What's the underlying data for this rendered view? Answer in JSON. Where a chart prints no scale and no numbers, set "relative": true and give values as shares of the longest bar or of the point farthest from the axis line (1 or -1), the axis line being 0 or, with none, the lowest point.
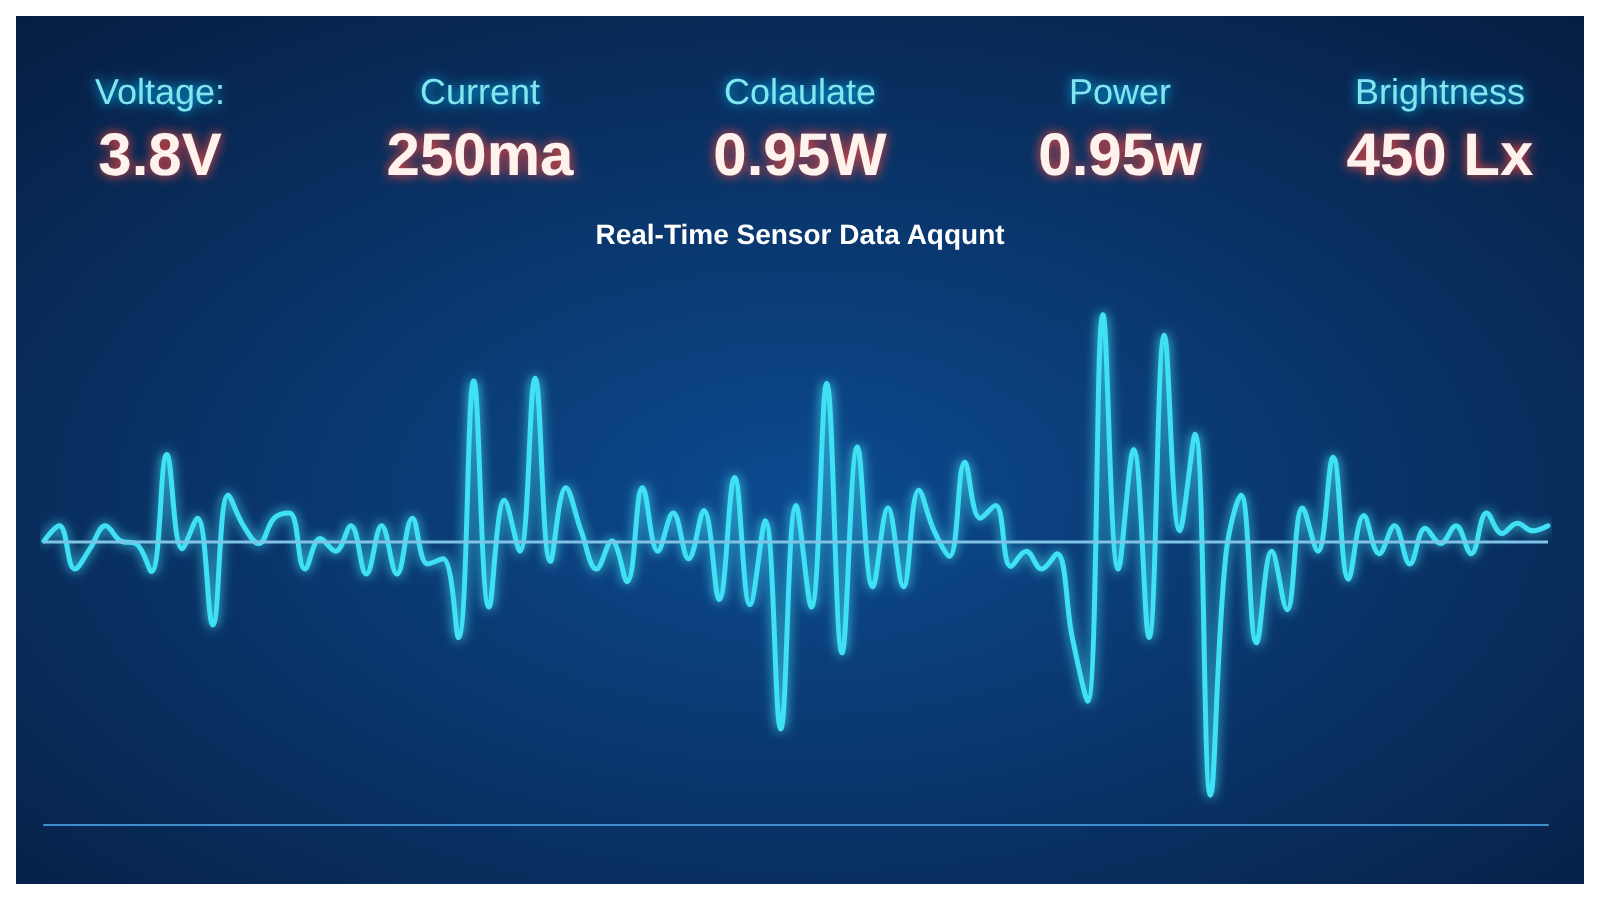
{
  "chart_data": {
    "type": "line",
    "title": "Real-Time Sensor Data Aqqunt",
    "annotations": [
      "Voltage:",
      "3.8V",
      "Current",
      "250ma",
      "Colaulate",
      "0.95W",
      "Power",
      "0.95w",
      "Brightness",
      "450 Lx"
    ],
    "relative": true,
    "categories": [
      null,
      null,
      null,
      null,
      null,
      null,
      null,
      null,
      null,
      null,
      null,
      null,
      null,
      null,
      null,
      null,
      null,
      null,
      null,
      null,
      null,
      null,
      null,
      null,
      null,
      null,
      null,
      null,
      null,
      null,
      null,
      null,
      null,
      null,
      null,
      null,
      null,
      null,
      null,
      null,
      null,
      null,
      null,
      null,
      null,
      null,
      null,
      null,
      null,
      null,
      null,
      null,
      null,
      null,
      null,
      null,
      null,
      null,
      null,
      null,
      null,
      null,
      null,
      null,
      null,
      null,
      null,
      null,
      null,
      null,
      null,
      null,
      null,
      null,
      null,
      null,
      null,
      null,
      null,
      null,
      null,
      null,
      null,
      null,
      null,
      null,
      null,
      null,
      null,
      null,
      null,
      null,
      null,
      null,
      null,
      null,
      null,
      null,
      null
    ],
    "series": [
      {
        "color": "#3fe0f5",
        "values": [
          0,
          0.06,
          -0.11,
          -0.03,
          0.06,
          0,
          -0.01,
          -0.12,
          0.34,
          -0.03,
          0.09,
          -0.33,
          0.18,
          0.06,
          -0.01,
          0.09,
          0.11,
          -0.11,
          0.01,
          -0.04,
          0.06,
          -0.13,
          0.06,
          -0.13,
          0.09,
          -0.09,
          -0.07,
          -0.38,
          0.63,
          -0.26,
          0.16,
          -0.04,
          0.64,
          -0.08,
          0.21,
          0.04,
          -0.11,
          0,
          -0.16,
          0.21,
          -0.04,
          0.11,
          -0.07,
          0.12,
          -0.23,
          0.25,
          -0.25,
          0.08,
          -0.74,
          0.14,
          -0.26,
          0.62,
          -0.44,
          0.37,
          -0.18,
          0.13,
          -0.18,
          0.2,
          0.04,
          -0.06,
          0.31,
          0.09,
          0.14,
          -0.1,
          -0.04,
          -0.11,
          -0.05,
          -0.38,
          -0.63,
          0.89,
          -0.11,
          0.36,
          -0.38,
          0.81,
          0.04,
          0.42,
          -1,
          -0.06,
          0.18,
          -0.4,
          -0.04,
          -0.27,
          0.13,
          -0.04,
          0.33,
          -0.15,
          0.1,
          -0.05,
          0.06,
          -0.09,
          0.05,
          -0.01,
          0.06,
          -0.05,
          0.11,
          0.03,
          0.07,
          0.04,
          0.06
        ]
      }
    ],
    "ref_lines": [
      {
        "axis": "y",
        "value": 0,
        "color": "#7fc4e6"
      }
    ],
    "marker": "none",
    "line_style": "solid"
  }
}
